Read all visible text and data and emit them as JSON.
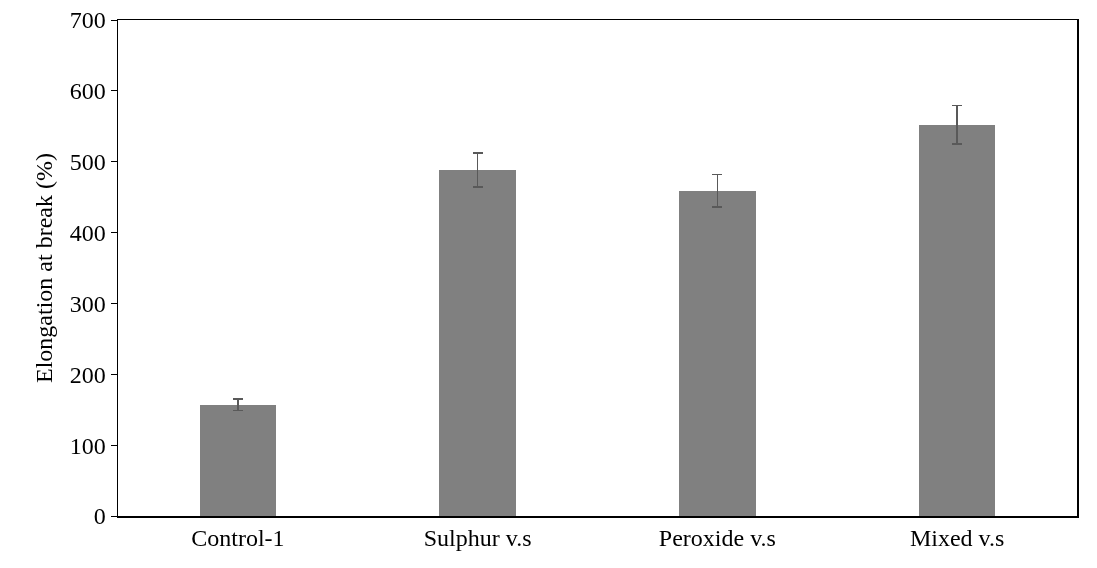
{
  "chart_data": {
    "type": "bar",
    "ylabel": "Elongation at break (%)",
    "categories": [
      "Control-1",
      "Sulphur v.s",
      "Peroxide v.s",
      "Mixed v.s"
    ],
    "values": [
      157,
      488,
      459,
      552
    ],
    "errors": [
      8,
      24,
      23,
      27
    ],
    "color": "#808080",
    "ylim": [
      0,
      700
    ],
    "yticks": [
      0,
      100,
      200,
      300,
      400,
      500,
      600,
      700
    ],
    "grid": false
  }
}
